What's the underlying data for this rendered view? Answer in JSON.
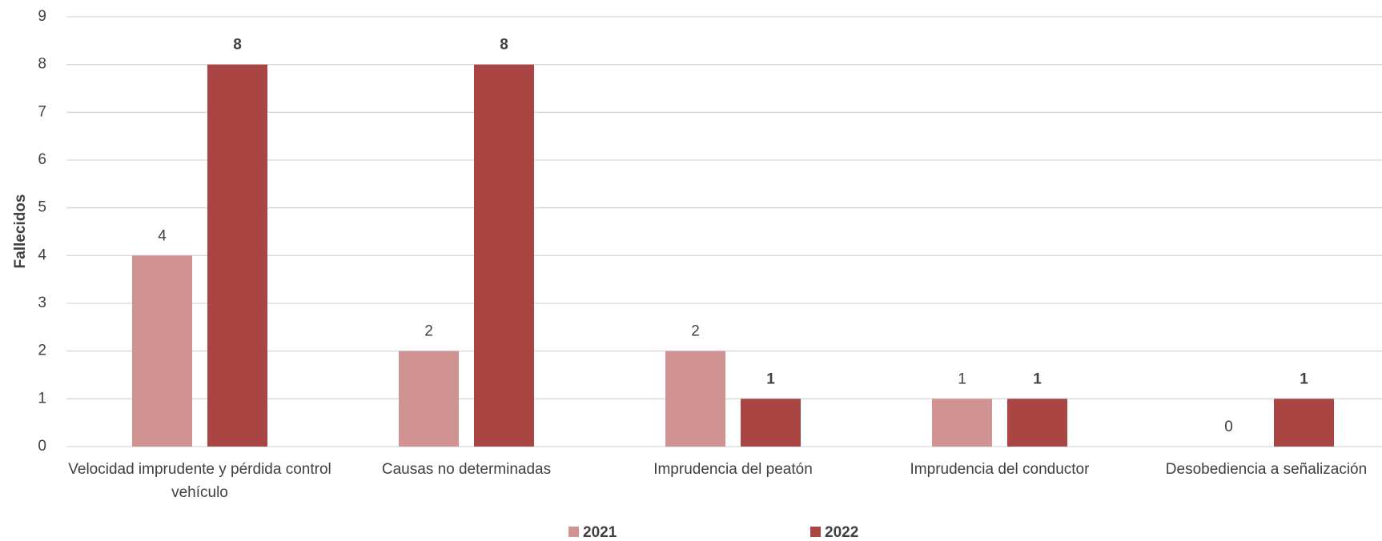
{
  "chart_data": {
    "type": "bar",
    "y_label": "Fallecidos",
    "categories": [
      "Velocidad imprudente y pérdida control vehículo",
      "Causas no determinadas",
      "Imprudencia del peatón",
      "Imprudencia del conductor",
      "Desobediencia a señalización"
    ],
    "series": [
      {
        "name": "2021",
        "color": "#d09391",
        "values": [
          4,
          2,
          2,
          1,
          0
        ]
      },
      {
        "name": "2022",
        "color": "#a94543",
        "values": [
          8,
          8,
          1,
          1,
          1
        ]
      }
    ],
    "ylim": [
      0,
      9
    ],
    "yticks": [
      0,
      1,
      2,
      3,
      4,
      5,
      6,
      7,
      8,
      9
    ],
    "grid": true
  }
}
